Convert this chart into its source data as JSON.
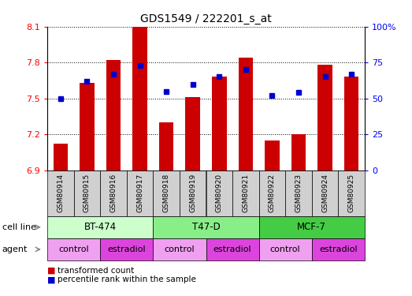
{
  "title": "GDS1549 / 222201_s_at",
  "samples": [
    "GSM80914",
    "GSM80915",
    "GSM80916",
    "GSM80917",
    "GSM80918",
    "GSM80919",
    "GSM80920",
    "GSM80921",
    "GSM80922",
    "GSM80923",
    "GSM80924",
    "GSM80925"
  ],
  "red_values": [
    7.12,
    7.63,
    7.82,
    8.1,
    7.3,
    7.51,
    7.68,
    7.84,
    7.15,
    7.2,
    7.78,
    7.68
  ],
  "blue_values": [
    50,
    62,
    67,
    73,
    55,
    60,
    65,
    70,
    52,
    54,
    65,
    67
  ],
  "y_min": 6.9,
  "y_max": 8.1,
  "y_ticks_left": [
    6.9,
    7.2,
    7.5,
    7.8,
    8.1
  ],
  "y_ticks_right": [
    0,
    25,
    50,
    75,
    100
  ],
  "bar_color": "#cc0000",
  "dot_color": "#0000cc",
  "cell_line_colors": [
    "#ccffcc",
    "#88ee88",
    "#44cc44"
  ],
  "cell_line_labels": [
    "BT-474",
    "T47-D",
    "MCF-7"
  ],
  "cell_line_starts": [
    0,
    4,
    8
  ],
  "cell_line_ends": [
    4,
    8,
    12
  ],
  "agent_colors": [
    "#f0a0f0",
    "#dd44dd",
    "#f0a0f0",
    "#dd44dd",
    "#f0a0f0",
    "#dd44dd"
  ],
  "agent_labels": [
    "control",
    "estradiol",
    "control",
    "estradiol",
    "control",
    "estradiol"
  ],
  "agent_starts": [
    0,
    2,
    4,
    6,
    8,
    10
  ],
  "agent_ends": [
    2,
    4,
    6,
    8,
    10,
    12
  ],
  "tick_gray": "#d0d0d0",
  "plot_bg": "#ffffff",
  "grid_color": "#000000"
}
